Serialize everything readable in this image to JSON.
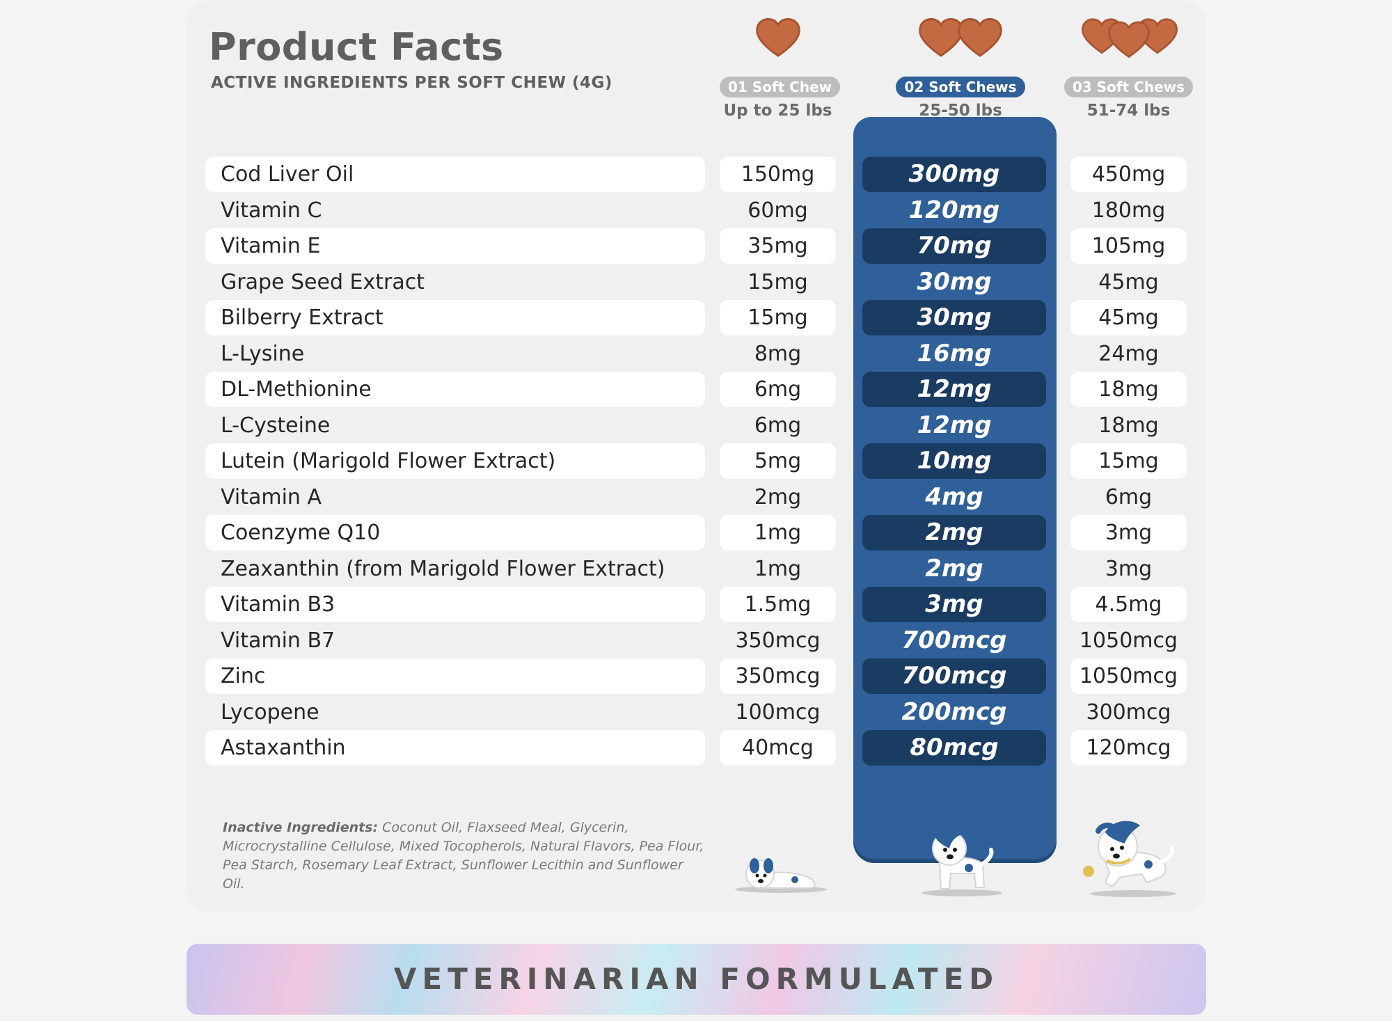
{
  "header": {
    "title": "Product Facts",
    "subtitle": "ACTIVE INGREDIENTS PER SOFT CHEW (4G)"
  },
  "columns": [
    {
      "label": "01 Soft Chew",
      "weight": "Up to 25 lbs",
      "active": false
    },
    {
      "label": "02 Soft Chews",
      "weight": "25-50 lbs",
      "active": true
    },
    {
      "label": "03 Soft Chews",
      "weight": "51-74 lbs",
      "active": false
    }
  ],
  "rows": [
    {
      "name": "Cod Liver Oil",
      "v1": "150mg",
      "v2": "300mg",
      "v3": "450mg"
    },
    {
      "name": "Vitamin C",
      "v1": "60mg",
      "v2": "120mg",
      "v3": "180mg"
    },
    {
      "name": "Vitamin E",
      "v1": "35mg",
      "v2": "70mg",
      "v3": "105mg"
    },
    {
      "name": "Grape Seed Extract",
      "v1": "15mg",
      "v2": "30mg",
      "v3": "45mg"
    },
    {
      "name": "Bilberry Extract",
      "v1": "15mg",
      "v2": "30mg",
      "v3": "45mg"
    },
    {
      "name": "L-Lysine",
      "v1": "8mg",
      "v2": "16mg",
      "v3": "24mg"
    },
    {
      "name": "DL-Methionine",
      "v1": "6mg",
      "v2": "12mg",
      "v3": "18mg"
    },
    {
      "name": "L-Cysteine",
      "v1": "6mg",
      "v2": "12mg",
      "v3": "18mg"
    },
    {
      "name": "Lutein (Marigold Flower Extract)",
      "v1": "5mg",
      "v2": "10mg",
      "v3": "15mg"
    },
    {
      "name": "Vitamin A",
      "v1": "2mg",
      "v2": "4mg",
      "v3": "6mg"
    },
    {
      "name": "Coenzyme Q10",
      "v1": "1mg",
      "v2": "2mg",
      "v3": "3mg"
    },
    {
      "name": "Zeaxanthin (from Marigold Flower Extract)",
      "v1": "1mg",
      "v2": "2mg",
      "v3": "3mg"
    },
    {
      "name": "Vitamin B3",
      "v1": "1.5mg",
      "v2": "3mg",
      "v3": "4.5mg"
    },
    {
      "name": "Vitamin B7",
      "v1": "350mcg",
      "v2": "700mcg",
      "v3": "1050mcg"
    },
    {
      "name": "Zinc",
      "v1": "350mcg",
      "v2": "700mcg",
      "v3": "1050mcg"
    },
    {
      "name": "Lycopene",
      "v1": "100mcg",
      "v2": "200mcg",
      "v3": "300mcg"
    },
    {
      "name": "Astaxanthin",
      "v1": "40mcg",
      "v2": "80mcg",
      "v3": "120mcg"
    }
  ],
  "inactive": {
    "label": "Inactive Ingredients:",
    "text": " Coconut Oil, Flaxseed Meal, Glycerin, Microcrystalline Cellulose, Mixed Tocopherols, Natural Flavors, Pea Flour, Pea Starch, Rosemary Leaf Extract, Sunflower Lecithin and Sunflower Oil."
  },
  "banner": {
    "text": "VETERINARIAN FORMULATED"
  },
  "colors": {
    "accent_blue": "#2f609a",
    "dark_blue": "#1a3c62",
    "chew_brown": "#c46a43"
  },
  "icons": [
    "heart-chew-icon",
    "dog-lying-icon",
    "dog-standing-icon",
    "dog-running-icon"
  ]
}
